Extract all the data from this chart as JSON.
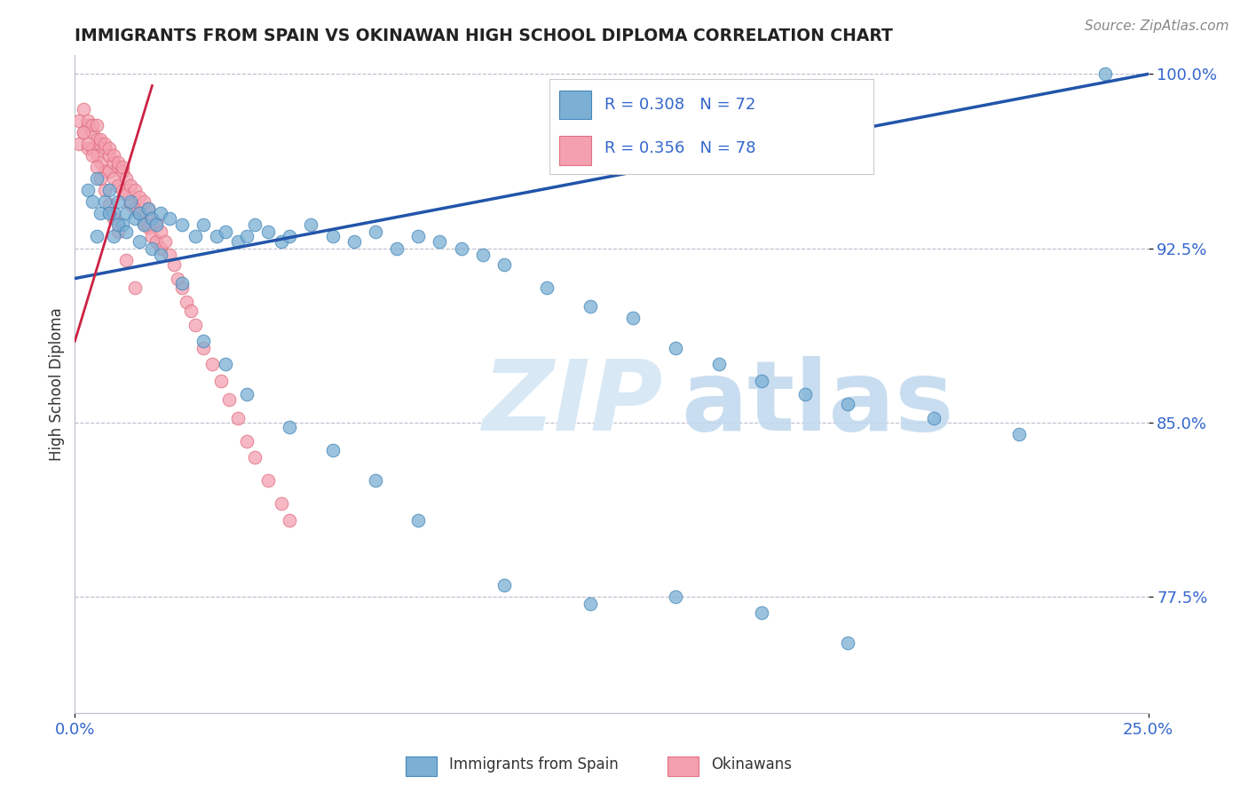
{
  "title": "IMMIGRANTS FROM SPAIN VS OKINAWAN HIGH SCHOOL DIPLOMA CORRELATION CHART",
  "source": "Source: ZipAtlas.com",
  "ylabel": "High School Diploma",
  "legend_label1": "Immigrants from Spain",
  "legend_label2": "Okinawans",
  "R1": 0.308,
  "N1": 72,
  "R2": 0.356,
  "N2": 78,
  "xmin": 0.0,
  "xmax": 0.25,
  "ymin": 0.725,
  "ymax": 1.008,
  "yticks": [
    0.775,
    0.85,
    0.925,
    1.0
  ],
  "ytick_labels": [
    "77.5%",
    "85.0%",
    "92.5%",
    "100.0%"
  ],
  "xtick_labels": [
    "0.0%",
    "25.0%"
  ],
  "color_blue": "#7BAFD4",
  "color_pink": "#F4A0B0",
  "color_line_blue": "#2255AA",
  "color_line_pink": "#CC2244",
  "color_title": "#333333",
  "color_axis_labels": "#3366CC",
  "blue_trend_x0": 0.0,
  "blue_trend_y0": 0.912,
  "blue_trend_x1": 0.25,
  "blue_trend_y1": 1.0,
  "pink_trend_x0": 0.0,
  "pink_trend_y0": 0.885,
  "pink_trend_x1": 0.018,
  "pink_trend_y1": 0.995,
  "blue_x": [
    0.003,
    0.004,
    0.005,
    0.006,
    0.007,
    0.008,
    0.009,
    0.01,
    0.011,
    0.012,
    0.013,
    0.014,
    0.015,
    0.016,
    0.017,
    0.018,
    0.019,
    0.02,
    0.022,
    0.025,
    0.028,
    0.03,
    0.033,
    0.035,
    0.038,
    0.04,
    0.042,
    0.045,
    0.048,
    0.05,
    0.055,
    0.06,
    0.065,
    0.07,
    0.075,
    0.08,
    0.085,
    0.09,
    0.095,
    0.1,
    0.11,
    0.12,
    0.13,
    0.14,
    0.15,
    0.16,
    0.17,
    0.18,
    0.2,
    0.22,
    0.005,
    0.008,
    0.01,
    0.012,
    0.015,
    0.018,
    0.02,
    0.025,
    0.03,
    0.035,
    0.04,
    0.05,
    0.06,
    0.07,
    0.08,
    0.1,
    0.12,
    0.14,
    0.16,
    0.18,
    0.009,
    0.24
  ],
  "blue_y": [
    0.95,
    0.945,
    0.955,
    0.94,
    0.945,
    0.95,
    0.94,
    0.945,
    0.935,
    0.94,
    0.945,
    0.938,
    0.94,
    0.935,
    0.942,
    0.938,
    0.935,
    0.94,
    0.938,
    0.935,
    0.93,
    0.935,
    0.93,
    0.932,
    0.928,
    0.93,
    0.935,
    0.932,
    0.928,
    0.93,
    0.935,
    0.93,
    0.928,
    0.932,
    0.925,
    0.93,
    0.928,
    0.925,
    0.922,
    0.918,
    0.908,
    0.9,
    0.895,
    0.882,
    0.875,
    0.868,
    0.862,
    0.858,
    0.852,
    0.845,
    0.93,
    0.94,
    0.935,
    0.932,
    0.928,
    0.925,
    0.922,
    0.91,
    0.885,
    0.875,
    0.862,
    0.848,
    0.838,
    0.825,
    0.808,
    0.78,
    0.772,
    0.775,
    0.768,
    0.755,
    0.93,
    1.0
  ],
  "pink_x": [
    0.001,
    0.001,
    0.002,
    0.002,
    0.003,
    0.003,
    0.003,
    0.004,
    0.004,
    0.004,
    0.005,
    0.005,
    0.005,
    0.006,
    0.006,
    0.006,
    0.007,
    0.007,
    0.007,
    0.008,
    0.008,
    0.008,
    0.009,
    0.009,
    0.009,
    0.01,
    0.01,
    0.01,
    0.011,
    0.011,
    0.011,
    0.012,
    0.012,
    0.013,
    0.013,
    0.014,
    0.014,
    0.015,
    0.015,
    0.016,
    0.016,
    0.017,
    0.017,
    0.018,
    0.018,
    0.019,
    0.019,
    0.02,
    0.02,
    0.021,
    0.022,
    0.023,
    0.024,
    0.025,
    0.026,
    0.027,
    0.028,
    0.03,
    0.032,
    0.034,
    0.036,
    0.038,
    0.04,
    0.042,
    0.045,
    0.048,
    0.05,
    0.002,
    0.003,
    0.004,
    0.005,
    0.006,
    0.007,
    0.008,
    0.009,
    0.01,
    0.012,
    0.014
  ],
  "pink_y": [
    0.97,
    0.98,
    0.975,
    0.985,
    0.978,
    0.968,
    0.98,
    0.975,
    0.968,
    0.978,
    0.972,
    0.965,
    0.978,
    0.97,
    0.962,
    0.972,
    0.968,
    0.958,
    0.97,
    0.965,
    0.958,
    0.968,
    0.962,
    0.955,
    0.965,
    0.96,
    0.952,
    0.962,
    0.958,
    0.95,
    0.96,
    0.955,
    0.948,
    0.952,
    0.944,
    0.95,
    0.942,
    0.947,
    0.94,
    0.945,
    0.936,
    0.942,
    0.934,
    0.938,
    0.93,
    0.936,
    0.928,
    0.932,
    0.925,
    0.928,
    0.922,
    0.918,
    0.912,
    0.908,
    0.902,
    0.898,
    0.892,
    0.882,
    0.875,
    0.868,
    0.86,
    0.852,
    0.842,
    0.835,
    0.825,
    0.815,
    0.808,
    0.975,
    0.97,
    0.965,
    0.96,
    0.955,
    0.95,
    0.944,
    0.938,
    0.932,
    0.92,
    0.908
  ]
}
